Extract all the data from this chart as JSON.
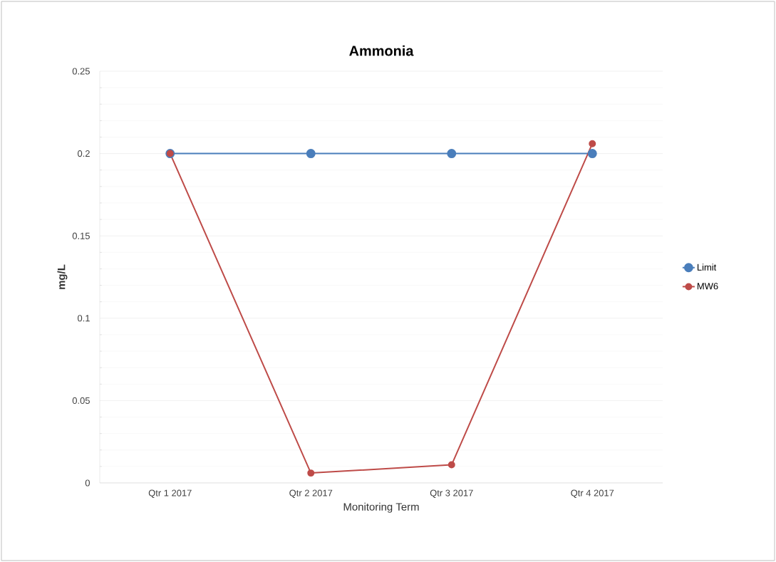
{
  "chart_data": {
    "type": "line",
    "title": "Ammonia",
    "xlabel": "Monitoring Term",
    "ylabel": "mg/L",
    "categories": [
      "Qtr 1 2017",
      "Qtr 2 2017",
      "Qtr 3 2017",
      "Qtr 4 2017"
    ],
    "series": [
      {
        "name": "Limit",
        "color": "#4a7ebb",
        "values": [
          0.2,
          0.2,
          0.2,
          0.2
        ]
      },
      {
        "name": "MW6",
        "color": "#be4b48",
        "values": [
          0.2,
          0.006,
          0.011,
          0.206
        ]
      }
    ],
    "ylim": [
      0,
      0.25
    ],
    "yticks": [
      0,
      0.05,
      0.1,
      0.15,
      0.2,
      0.25
    ],
    "grid": "y",
    "legend": "right",
    "marker": "circle",
    "line_style": "solid"
  }
}
